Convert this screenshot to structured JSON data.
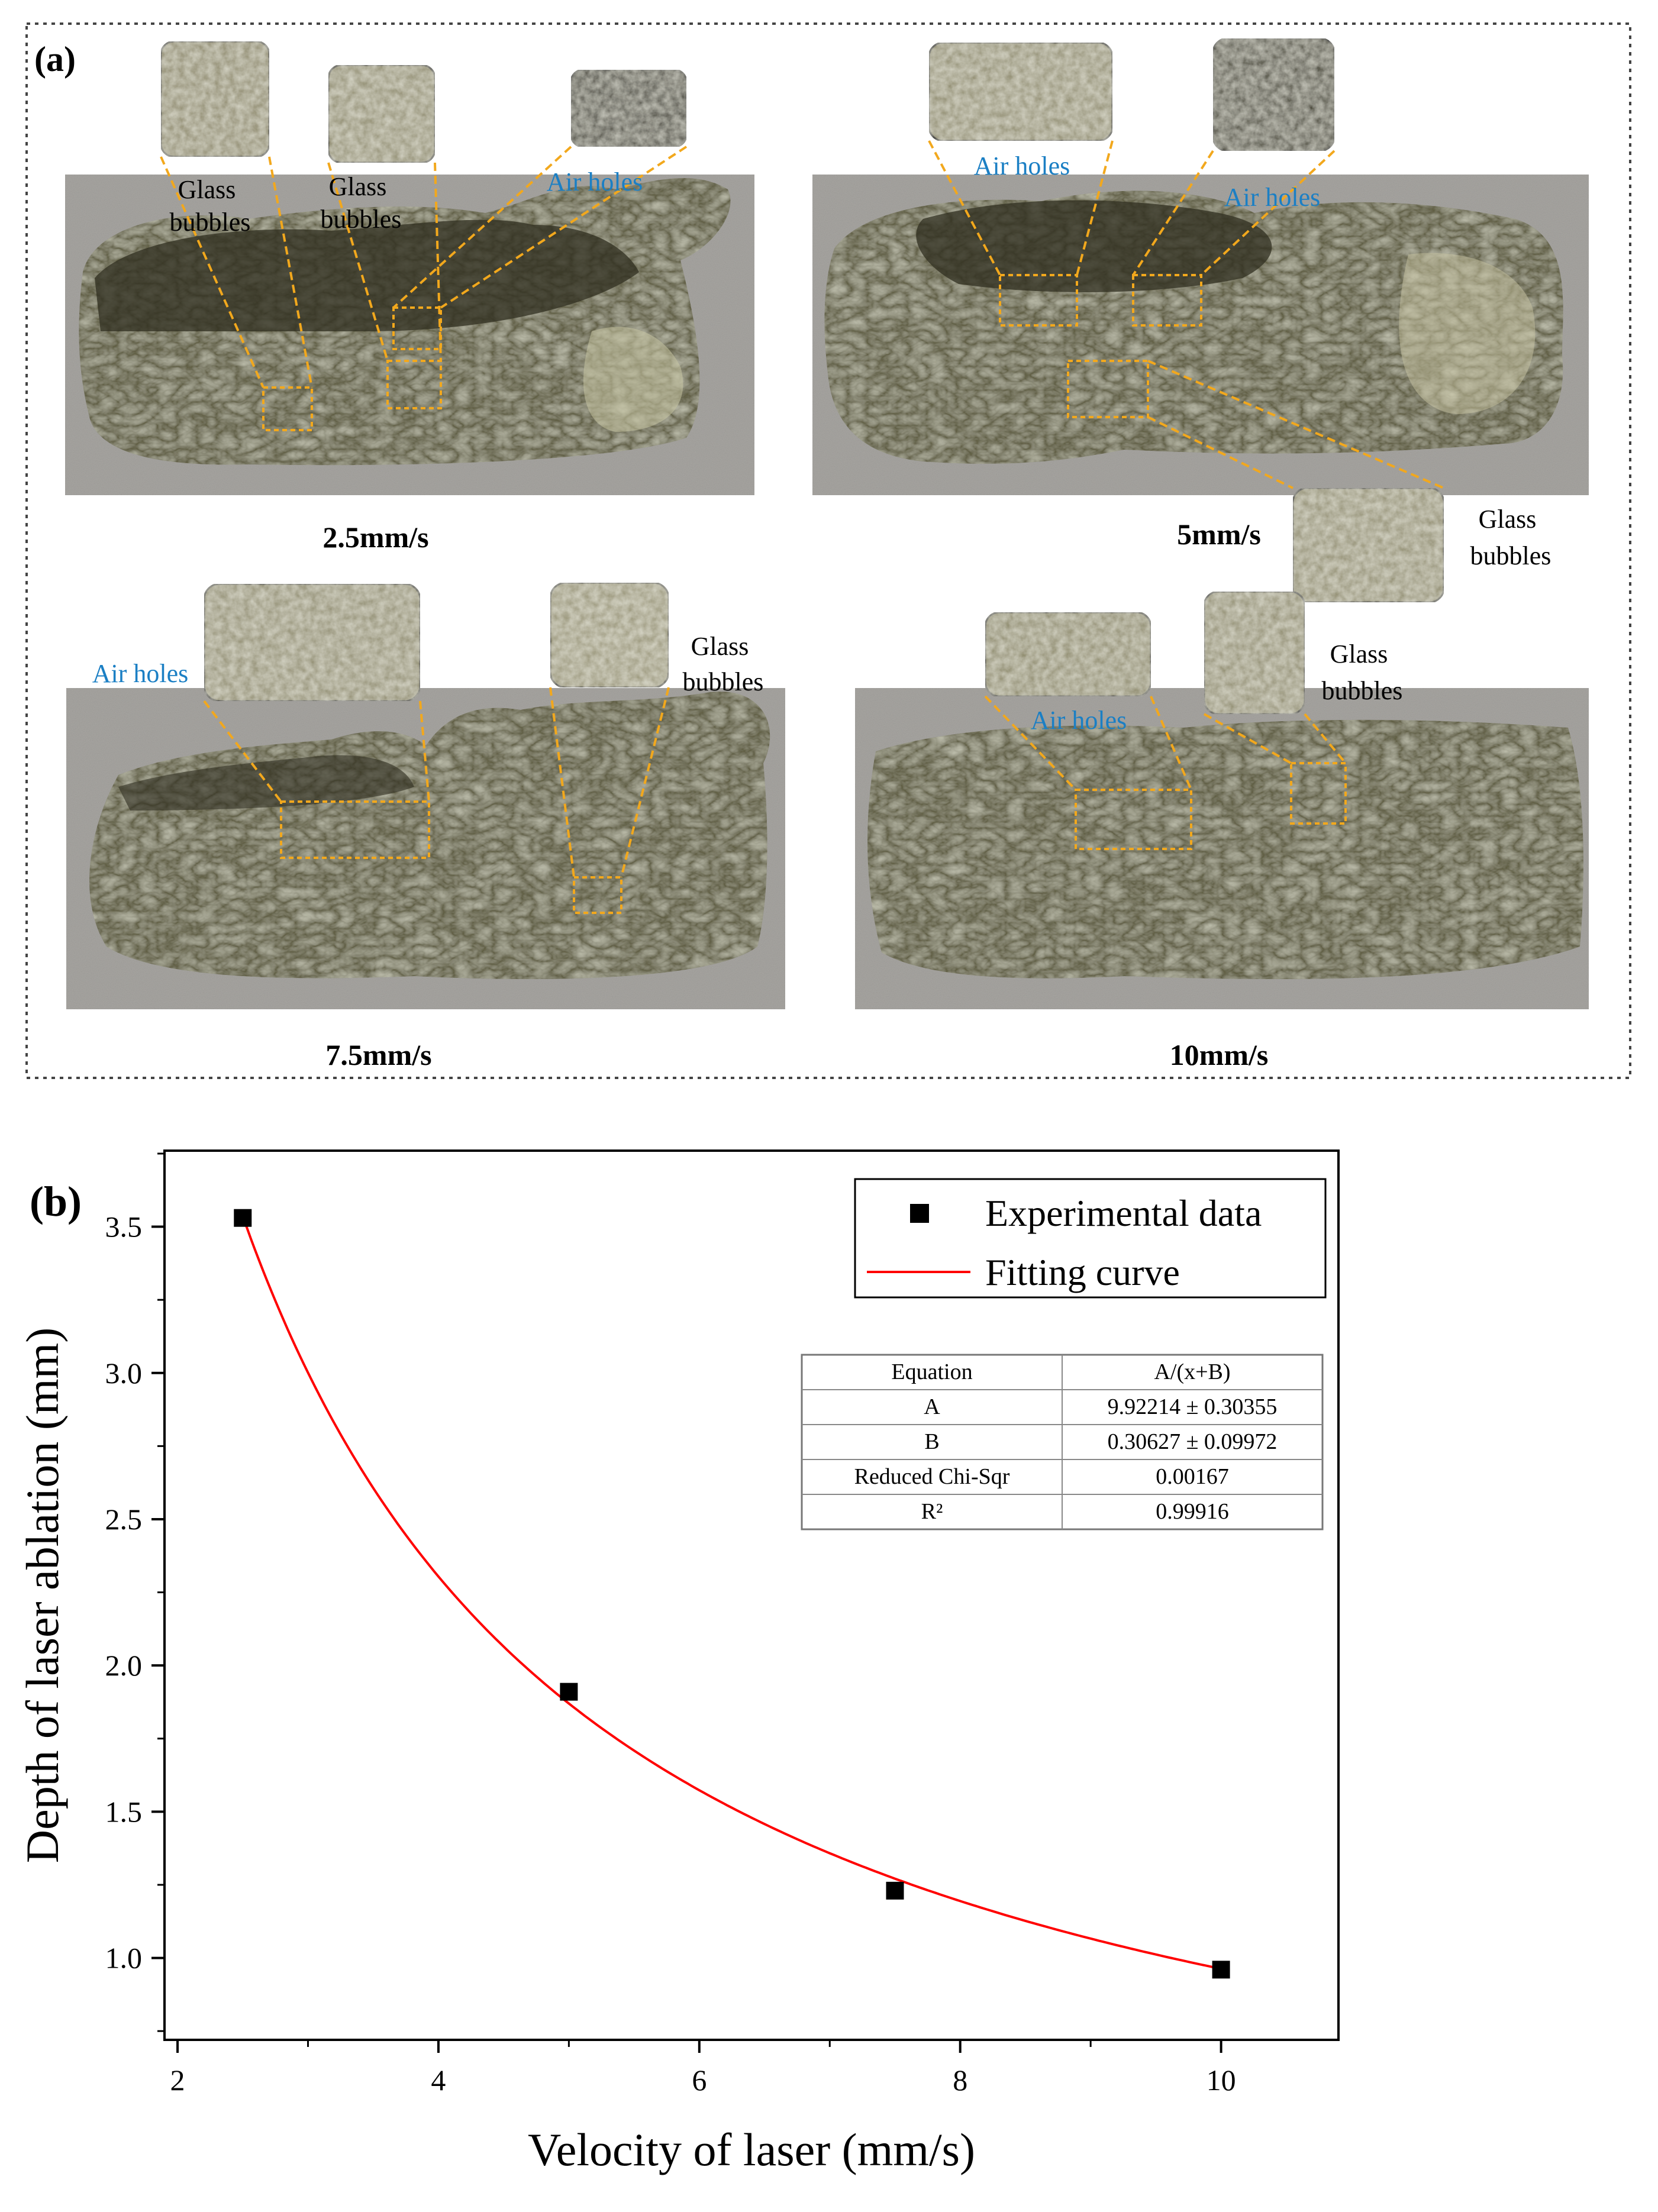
{
  "panel_a": {
    "label": "(a)",
    "panels": [
      {
        "speed": "2.5mm/s",
        "callouts": [
          {
            "text": [
              "Glass",
              "bubbles"
            ],
            "kind": "glass"
          },
          {
            "text": [
              "Glass",
              "bubbles"
            ],
            "kind": "glass"
          },
          {
            "text": [
              "Air holes"
            ],
            "kind": "air"
          }
        ]
      },
      {
        "speed": "5mm/s",
        "callouts": [
          {
            "text": [
              "Air holes"
            ],
            "kind": "air"
          },
          {
            "text": [
              "Air holes"
            ],
            "kind": "air"
          },
          {
            "text": [
              "Glass",
              "bubbles"
            ],
            "kind": "glass"
          }
        ]
      },
      {
        "speed": "7.5mm/s",
        "callouts": [
          {
            "text": [
              "Air holes"
            ],
            "kind": "air"
          },
          {
            "text": [
              "Glass",
              "bubbles"
            ],
            "kind": "glass"
          }
        ]
      },
      {
        "speed": "10mm/s",
        "callouts": [
          {
            "text": [
              "Air holes"
            ],
            "kind": "air"
          },
          {
            "text": [
              "Glass",
              "bubbles"
            ],
            "kind": "glass"
          }
        ]
      }
    ],
    "colors": {
      "air_label": "#1b7fc4",
      "callout_line": "#f2a81d",
      "frame": "#444444",
      "sample_background": "#a8a6a2",
      "melt": "#5c5a3e",
      "melt_dark": "#2f2d1f"
    }
  },
  "panel_b": {
    "label": "(b)",
    "chart_data": {
      "type": "scatter",
      "xlabel": "Velocity of laser (mm/s)",
      "ylabel": "Depth of laser ablation (mm)",
      "xlim": [
        1.9,
        10.9
      ],
      "ylim": [
        0.72,
        3.76
      ],
      "xticks": [
        2,
        4,
        6,
        8,
        10
      ],
      "yticks": [
        1.0,
        1.5,
        2.0,
        2.5,
        3.0,
        3.5
      ],
      "series": [
        {
          "name": "Experimental data",
          "marker": "square",
          "color": "#000000",
          "x": [
            2.5,
            5,
            7.5,
            10
          ],
          "y": [
            3.53,
            1.91,
            1.23,
            0.96
          ]
        },
        {
          "name": "Fitting curve",
          "type": "line",
          "color": "#ff0000",
          "model": "A/(x+B)",
          "A": 9.92214,
          "B": 0.30627,
          "x_range": [
            2.5,
            10
          ]
        }
      ],
      "legend": "top-right",
      "grid": false,
      "fit_table": [
        [
          "Equation",
          "A/(x+B)"
        ],
        [
          "A",
          "9.92214 ± 0.30355"
        ],
        [
          "B",
          "0.30627 ± 0.09972"
        ],
        [
          "Reduced Chi-Sqr",
          "0.00167"
        ],
        [
          "R²",
          "0.99916"
        ]
      ]
    }
  }
}
